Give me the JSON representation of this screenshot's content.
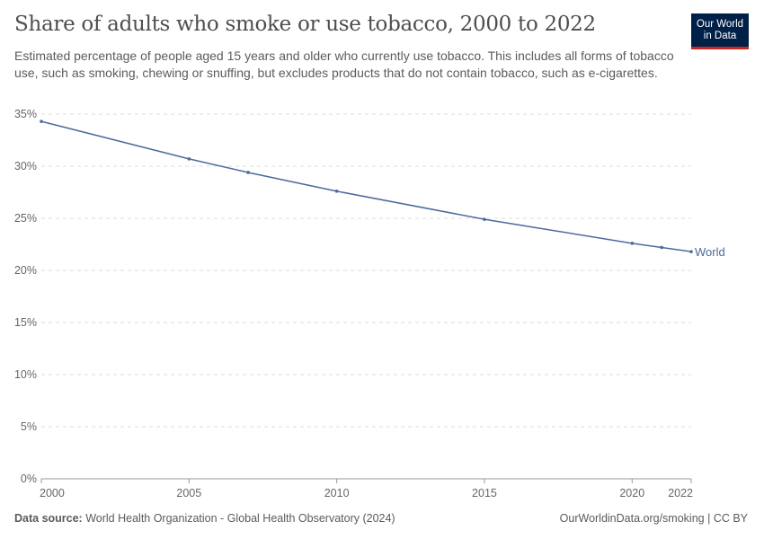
{
  "title": "Share of adults who smoke or use tobacco, 2000 to 2022",
  "subtitle": "Estimated percentage of people aged 15 years and older who currently use tobacco. This includes all forms of tobacco use, such as smoking, chewing or snuffing, but excludes products that do not contain tobacco, such as e-cigarettes.",
  "logo": {
    "line1": "Our World",
    "line2": "in Data",
    "bg": "#002147",
    "accent": "#ce261e"
  },
  "footer": {
    "source_label": "Data source:",
    "source": "World Health Organization - Global Health Observatory (2024)",
    "link": "OurWorldinData.org/smoking | CC BY"
  },
  "chart_data": {
    "type": "line",
    "title": "Share of adults who smoke or use tobacco, 2000 to 2022",
    "xlabel": "",
    "ylabel": "",
    "xlim": [
      2000,
      2022
    ],
    "ylim": [
      0,
      35
    ],
    "grid": true,
    "x_ticks": [
      "2000",
      "2005",
      "2010",
      "2015",
      "2020",
      "2022"
    ],
    "y_ticks": [
      "0%",
      "5%",
      "10%",
      "15%",
      "20%",
      "25%",
      "30%",
      "35%"
    ],
    "series": [
      {
        "name": "World",
        "color": "#4c6a9c",
        "x": [
          2000,
          2005,
          2007,
          2010,
          2015,
          2020,
          2021,
          2022
        ],
        "values": [
          34.3,
          30.7,
          29.4,
          27.6,
          24.9,
          22.6,
          22.2,
          21.8
        ]
      }
    ]
  }
}
